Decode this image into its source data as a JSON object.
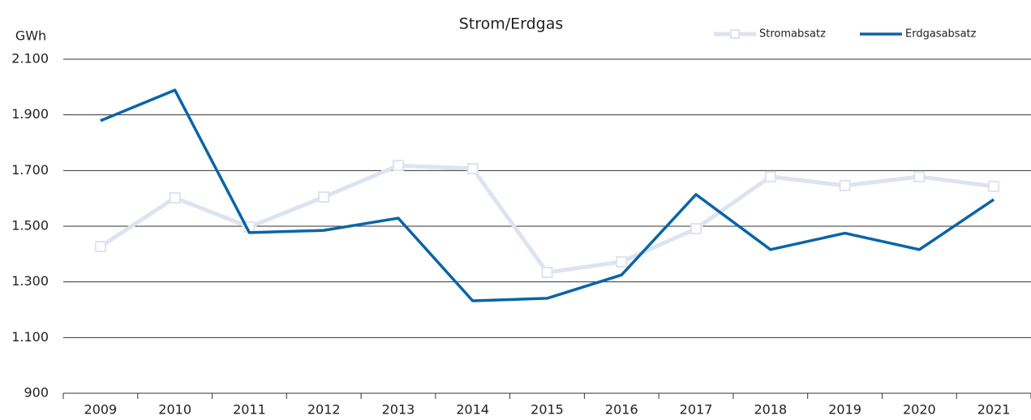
{
  "chart_data": {
    "type": "line",
    "title": "Strom/Erdgas",
    "y_label": "GWh",
    "categories": [
      "2009",
      "2010",
      "2011",
      "2012",
      "2013",
      "2014",
      "2015",
      "2016",
      "2017",
      "2018",
      "2019",
      "2020",
      "2021"
    ],
    "series": [
      {
        "name": "Stromabsatz",
        "color": "#dde3f0",
        "marker": "square",
        "values": [
          1427,
          1602,
          1497,
          1605,
          1718,
          1707,
          1334,
          1372,
          1491,
          1678,
          1646,
          1678,
          1643
        ]
      },
      {
        "name": "Erdgasabsatz",
        "color": "#0a64a8",
        "values": [
          1879,
          1989,
          1477,
          1485,
          1529,
          1232,
          1241,
          1325,
          1614,
          1416,
          1475,
          1416,
          1596
        ]
      }
    ],
    "ylim": [
      900,
      2100
    ],
    "yticks": [
      900,
      {
        "value": 1100,
        "label": "1.100"
      },
      {
        "value": 1300,
        "label": "1.300"
      },
      {
        "value": 1500,
        "label": "1.500"
      },
      {
        "value": 1700,
        "label": "1.700"
      },
      {
        "value": 1900,
        "label": "1.900"
      },
      {
        "value": 2100,
        "label": "2.100"
      }
    ],
    "grid": true,
    "legend": "top-right"
  }
}
